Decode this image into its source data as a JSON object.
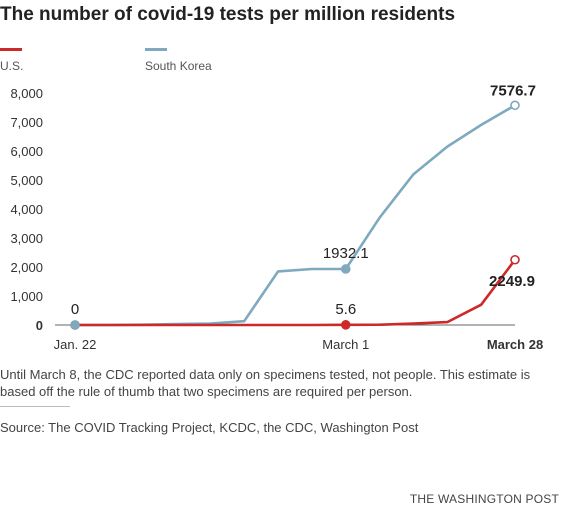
{
  "title": "The number of covid-19 tests per million residents",
  "chart_data": {
    "type": "line",
    "title": "The number of covid-19 tests per million residents",
    "xlabel": "",
    "ylabel": "",
    "x_tick_labels": [
      {
        "label": "Jan. 22",
        "x": 0,
        "bold": false
      },
      {
        "label": "March 1",
        "x": 8,
        "bold": false
      },
      {
        "label": "March 28",
        "x": 13,
        "bold": true
      }
    ],
    "y_ticks": [
      0,
      1000,
      2000,
      3000,
      4000,
      5000,
      6000,
      7000,
      8000
    ],
    "y_tick_labels": [
      "0",
      "1,000",
      "2,000",
      "3,000",
      "4,000",
      "5,000",
      "6,000",
      "7,000",
      "8,000"
    ],
    "ylim": [
      0,
      8000
    ],
    "xlim": [
      0,
      13
    ],
    "legend_position": "top-left",
    "series": [
      {
        "name": "U.S.",
        "color": "#cc2a2a",
        "x": [
          0,
          1,
          2,
          3,
          4,
          5,
          6,
          7,
          8,
          9,
          10,
          11,
          12,
          13
        ],
        "values": [
          0,
          0,
          0,
          0,
          0,
          0,
          0,
          0,
          5.6,
          10,
          50,
          100,
          700,
          2249.9
        ],
        "labeled_points": [
          {
            "x": 0,
            "y": 0,
            "label": "0"
          },
          {
            "x": 8,
            "y": 5.6,
            "label": "5.6"
          },
          {
            "x": 13,
            "y": 2249.9,
            "label": "2249.9"
          }
        ]
      },
      {
        "name": "South Korea",
        "color": "#7ea9bf",
        "x": [
          0,
          1,
          2,
          3,
          4,
          5,
          6,
          7,
          8,
          9,
          10,
          11,
          12,
          13
        ],
        "values": [
          0,
          0,
          10,
          30,
          50,
          130,
          1850,
          1932.1,
          1932.1,
          3700,
          5200,
          6150,
          6900,
          7576.7
        ],
        "labeled_points": [
          {
            "x": 7,
            "y": 1932.1,
            "label": "1932.1"
          },
          {
            "x": 13,
            "y": 7576.7,
            "label": "7576.7"
          }
        ]
      }
    ],
    "grid": {
      "horizontal": false,
      "vertical": false
    }
  },
  "note": "Until March 8, the CDC reported data only on specimens tested, not people. This estimate is based off the rule of thumb that two specimens are required per person.",
  "source": "Source: The COVID Tracking Project, KCDC, the CDC, Washington Post",
  "credit": "THE WASHINGTON POST"
}
